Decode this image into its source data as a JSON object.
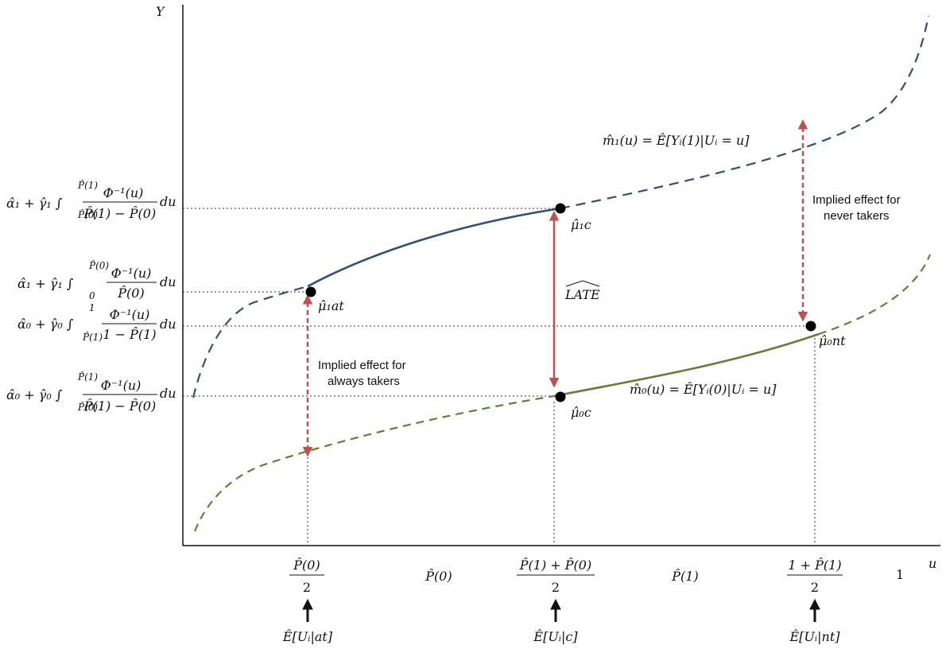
{
  "axes": {
    "y_label": "Y",
    "x_label": "u",
    "x_end_label": "1"
  },
  "curves": {
    "m1_label": "m̂₁(u) = Ê[Yᵢ(1)|Uᵢ = u]",
    "m0_label": "m̂₀(u) = Ê[Yᵢ(0)|Uᵢ = u]"
  },
  "points": {
    "mu_1c": "μ̂₁c",
    "mu_1at": "μ̂₁at",
    "mu_0c": "μ̂₀c",
    "mu_0nt": "μ̂₀nt"
  },
  "effects": {
    "late": "LATE",
    "always_takers": [
      "Implied effect for",
      "always takers"
    ],
    "never_takers": [
      "Implied effect for",
      "never takers"
    ]
  },
  "x_ticks": {
    "p0_half_num": "P̂(0)",
    "p0_half_den": "2",
    "p0": "P̂(0)",
    "mid_num": "P̂(1) + P̂(0)",
    "mid_den": "2",
    "p1": "P̂(1)",
    "nt_num": "1 + P̂(1)",
    "nt_den": "2"
  },
  "expectations": {
    "at": "Ê[Uᵢ|at]",
    "c": "Ê[Uᵢ|c]",
    "nt": "Ê[Uᵢ|nt]"
  },
  "y_ticks": {
    "y1": {
      "lead": "α̂₁ + γ̂₁ ∫",
      "upper": "P̂(1)",
      "lower": "P̂(0)",
      "num": "Φ⁻¹(u)",
      "den": "P̂(1) − P̂(0)",
      "tail": "du"
    },
    "y2": {
      "lead": "α̂₁ + γ̂₁ ∫",
      "upper": "P̂(0)",
      "lower": "0",
      "num": "Φ⁻¹(u)",
      "den": "P̂(0)",
      "tail": "du"
    },
    "y3": {
      "lead": "α̂₀ + γ̂₀ ∫",
      "upper": "1",
      "lower": "P̂(1)",
      "num": "Φ⁻¹(u)",
      "den": "1 − P̂(1)",
      "tail": "du"
    },
    "y4": {
      "lead": "α̂₀ + γ̂₀ ∫",
      "upper": "P̂(1)",
      "lower": "P̂(0)",
      "num": "Φ⁻¹(u)",
      "den": "P̂(1) − P̂(0)",
      "tail": "du"
    }
  },
  "colors": {
    "m1": "#2e5179",
    "m0": "#5f8035",
    "arrow": "#c0504d",
    "guide": "#333333"
  }
}
